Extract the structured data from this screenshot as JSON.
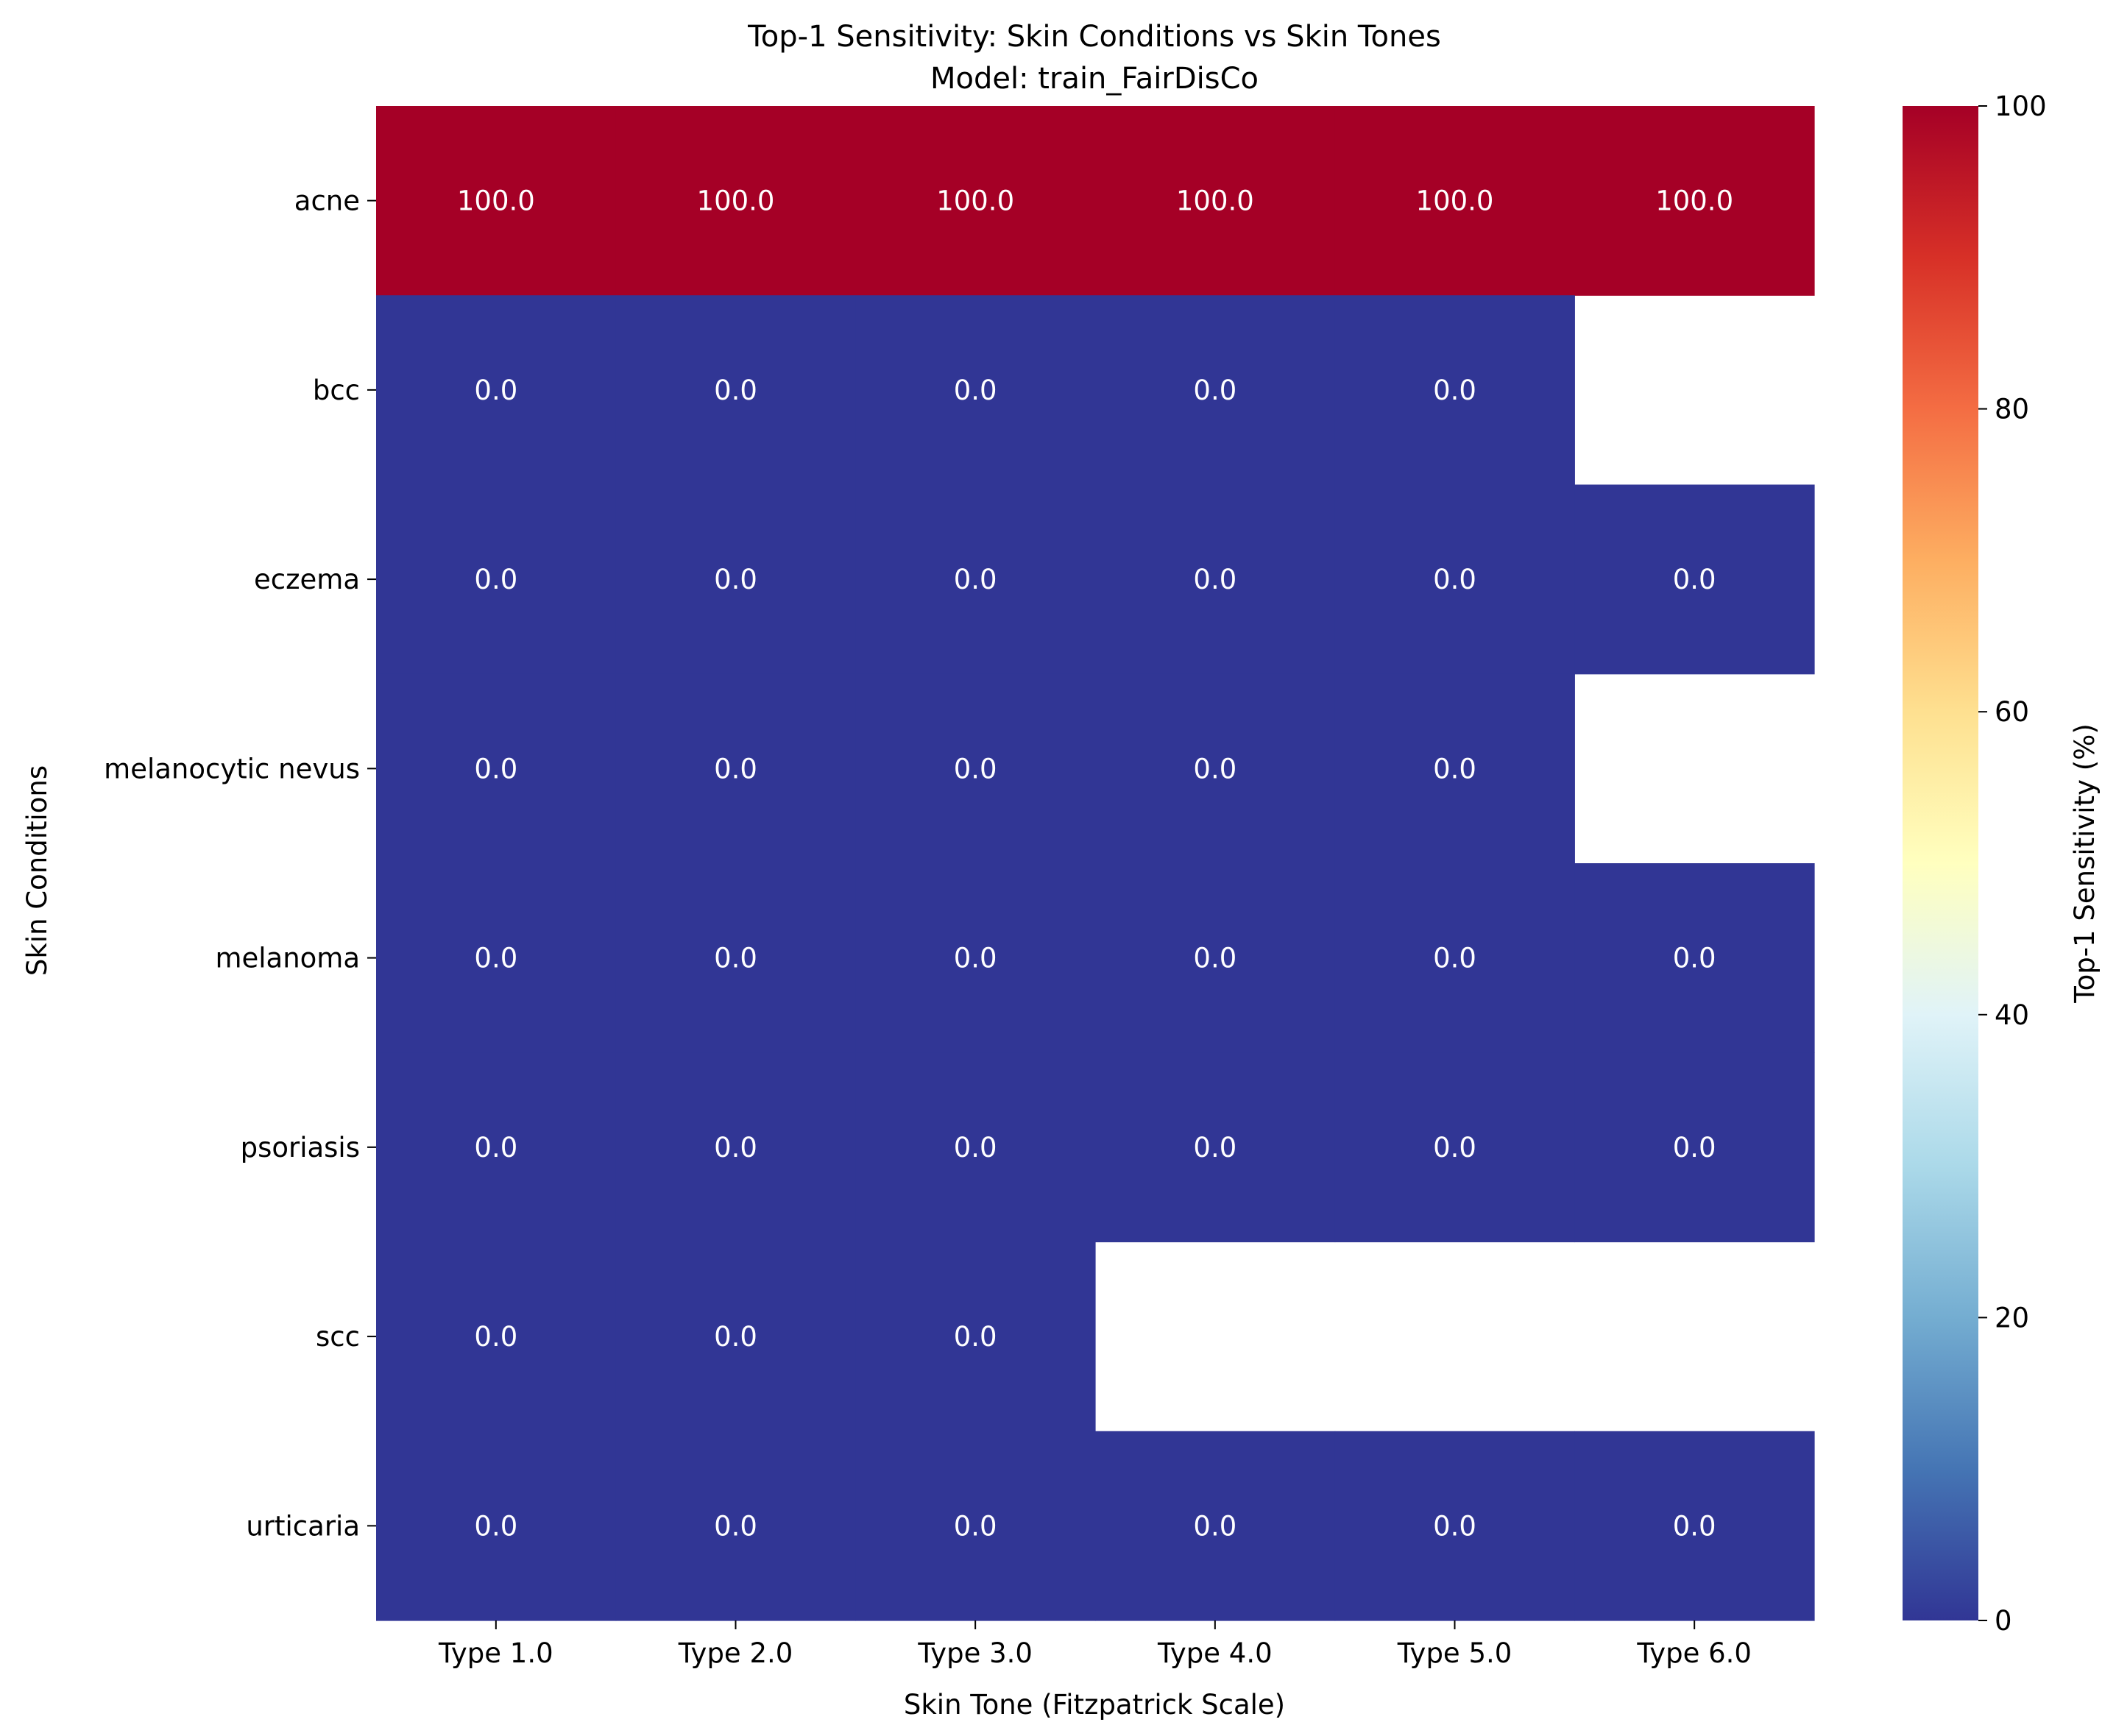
{
  "chart_data": {
    "type": "heatmap",
    "title": "Top-1 Sensitivity: Skin Conditions vs Skin Tones",
    "subtitle": "Model: train_FairDisCo",
    "xlabel": "Skin Tone (Fitzpatrick Scale)",
    "ylabel": "Skin Conditions",
    "x_categories": [
      "Type 1.0",
      "Type 2.0",
      "Type 3.0",
      "Type 4.0",
      "Type 5.0",
      "Type 6.0"
    ],
    "y_categories": [
      "acne",
      "bcc",
      "eczema",
      "melanocytic nevus",
      "melanoma",
      "psoriasis",
      "scc",
      "urticaria"
    ],
    "values": [
      [
        100.0,
        100.0,
        100.0,
        100.0,
        100.0,
        100.0
      ],
      [
        0.0,
        0.0,
        0.0,
        0.0,
        0.0,
        null
      ],
      [
        0.0,
        0.0,
        0.0,
        0.0,
        0.0,
        0.0
      ],
      [
        0.0,
        0.0,
        0.0,
        0.0,
        0.0,
        null
      ],
      [
        0.0,
        0.0,
        0.0,
        0.0,
        0.0,
        0.0
      ],
      [
        0.0,
        0.0,
        0.0,
        0.0,
        0.0,
        0.0
      ],
      [
        0.0,
        0.0,
        0.0,
        null,
        null,
        null
      ],
      [
        0.0,
        0.0,
        0.0,
        0.0,
        0.0,
        0.0
      ]
    ],
    "value_format": "0.0",
    "missing_color": "#ffffff",
    "colorbar": {
      "label": "Top-1 Sensitivity (%)",
      "range": [
        0,
        100
      ],
      "ticks": [
        0,
        20,
        40,
        60,
        80,
        100
      ],
      "colormap": "RdYlBu_r",
      "stops": [
        "#313695",
        "#4575b4",
        "#74add1",
        "#abd9e9",
        "#e0f3f8",
        "#ffffbf",
        "#fee090",
        "#fdae61",
        "#f46d43",
        "#d73027",
        "#a50026"
      ]
    },
    "annotation_color": "#ffffff"
  }
}
